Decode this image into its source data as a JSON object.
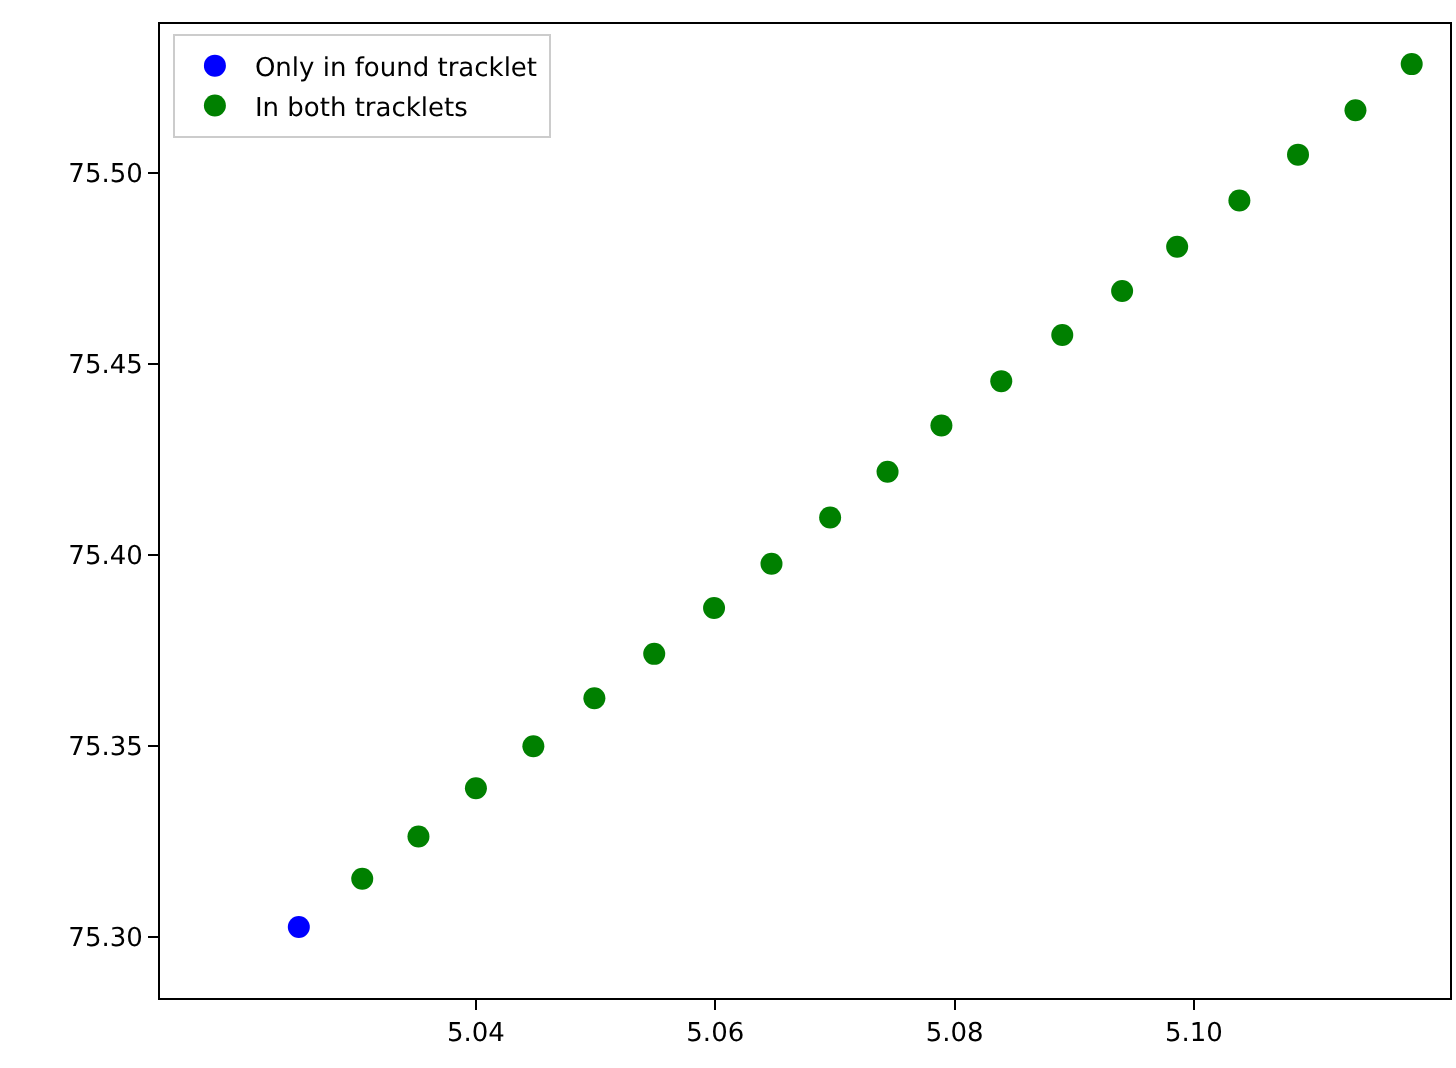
{
  "chart_data": {
    "type": "scatter",
    "xlim": [
      5.0136,
      5.1214
    ],
    "ylim": [
      75.284,
      75.539
    ],
    "xticks": [
      5.04,
      5.06,
      5.08,
      {
        "value": 5.1,
        "label": "5.10"
      }
    ],
    "yticks": [
      {
        "value": 75.3,
        "label": "75.30"
      },
      75.35,
      {
        "value": 75.4,
        "label": "75.40"
      },
      75.45,
      {
        "value": 75.5,
        "label": "75.50"
      }
    ],
    "legend": "top left",
    "marker": "circle",
    "series": [
      {
        "name": "Only in found tracklet",
        "color": "#0000ff",
        "x": [
          5.0252
        ],
        "values": [
          75.3026
        ]
      },
      {
        "name": "In both tracklets",
        "color": "#008000",
        "x": [
          5.0305,
          5.0352,
          5.04,
          5.0448,
          5.0499,
          5.0549,
          5.0599,
          5.0647,
          5.0696,
          5.0744,
          5.0789,
          5.0839,
          5.089,
          5.094,
          5.0986,
          5.1038,
          5.1087,
          5.1135,
          5.1182
        ],
        "values": [
          75.3152,
          75.3263,
          75.3389,
          75.3499,
          75.3625,
          75.3741,
          75.3861,
          75.3977,
          75.4098,
          75.4218,
          75.4339,
          75.4455,
          75.4576,
          75.4691,
          75.4807,
          75.4928,
          75.5048,
          75.5164,
          75.5285
        ]
      }
    ]
  }
}
